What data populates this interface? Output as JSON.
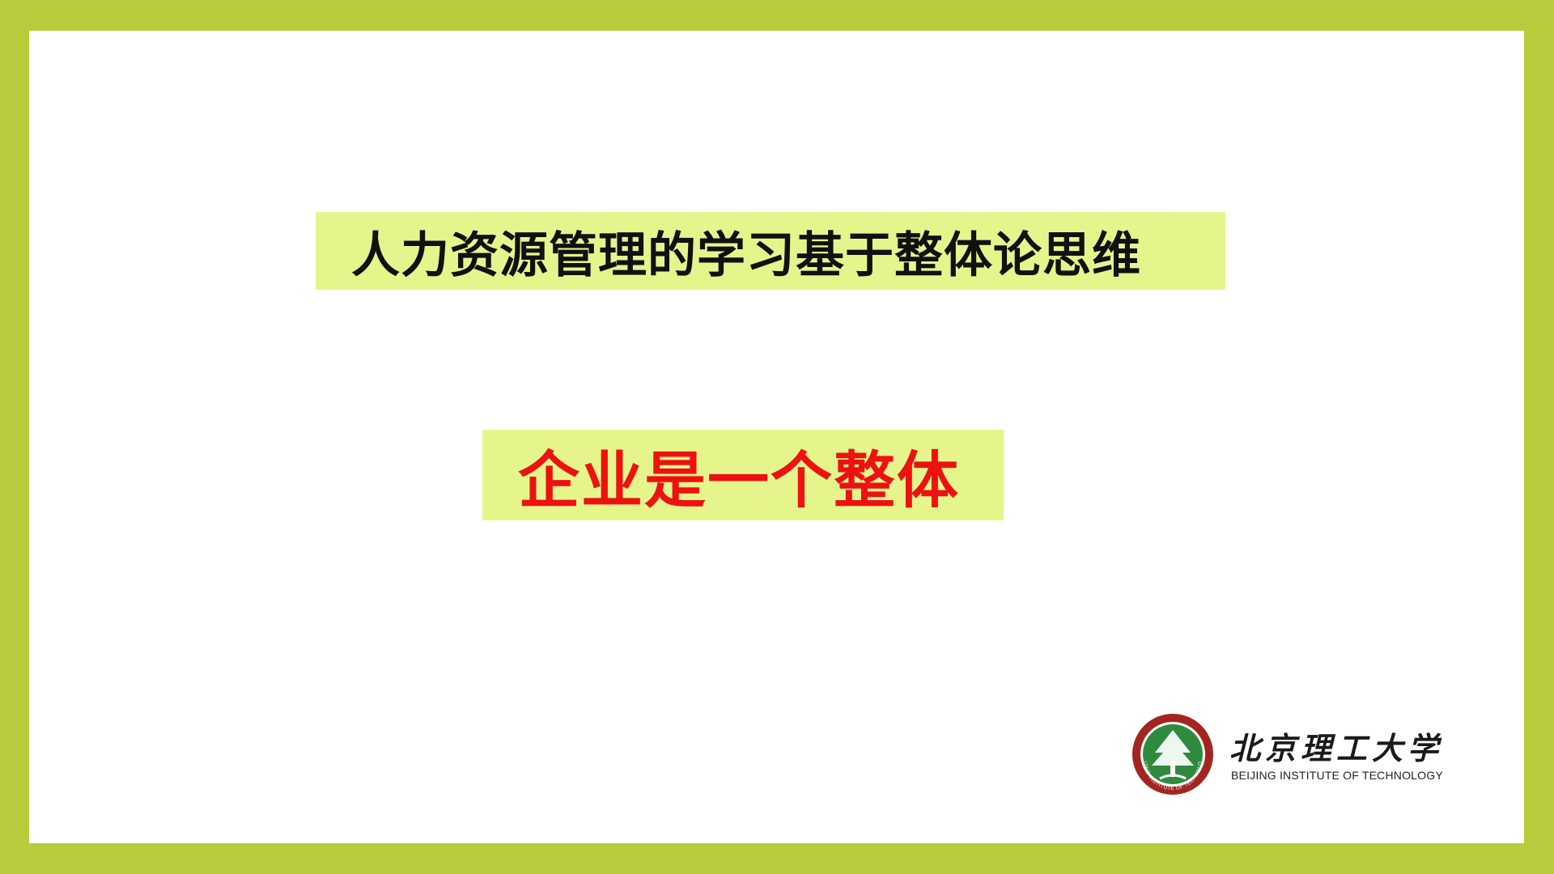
{
  "slide": {
    "headline": "人力资源管理的学习基于整体论思维",
    "key_point": "企业是一个整体"
  },
  "logo": {
    "name_cn": "北京理工大学",
    "name_en": "BEIJING INSTITUTE OF TECHNOLOGY",
    "seal_text": "BEIJING INSTITUTE OF TECHNOLOGY"
  },
  "colors": {
    "frame": "#b8cc3b",
    "highlight": "#e5f58c",
    "key_text": "#ee1111",
    "seal_red": "#a2261f",
    "seal_green": "#2f8a3e"
  }
}
